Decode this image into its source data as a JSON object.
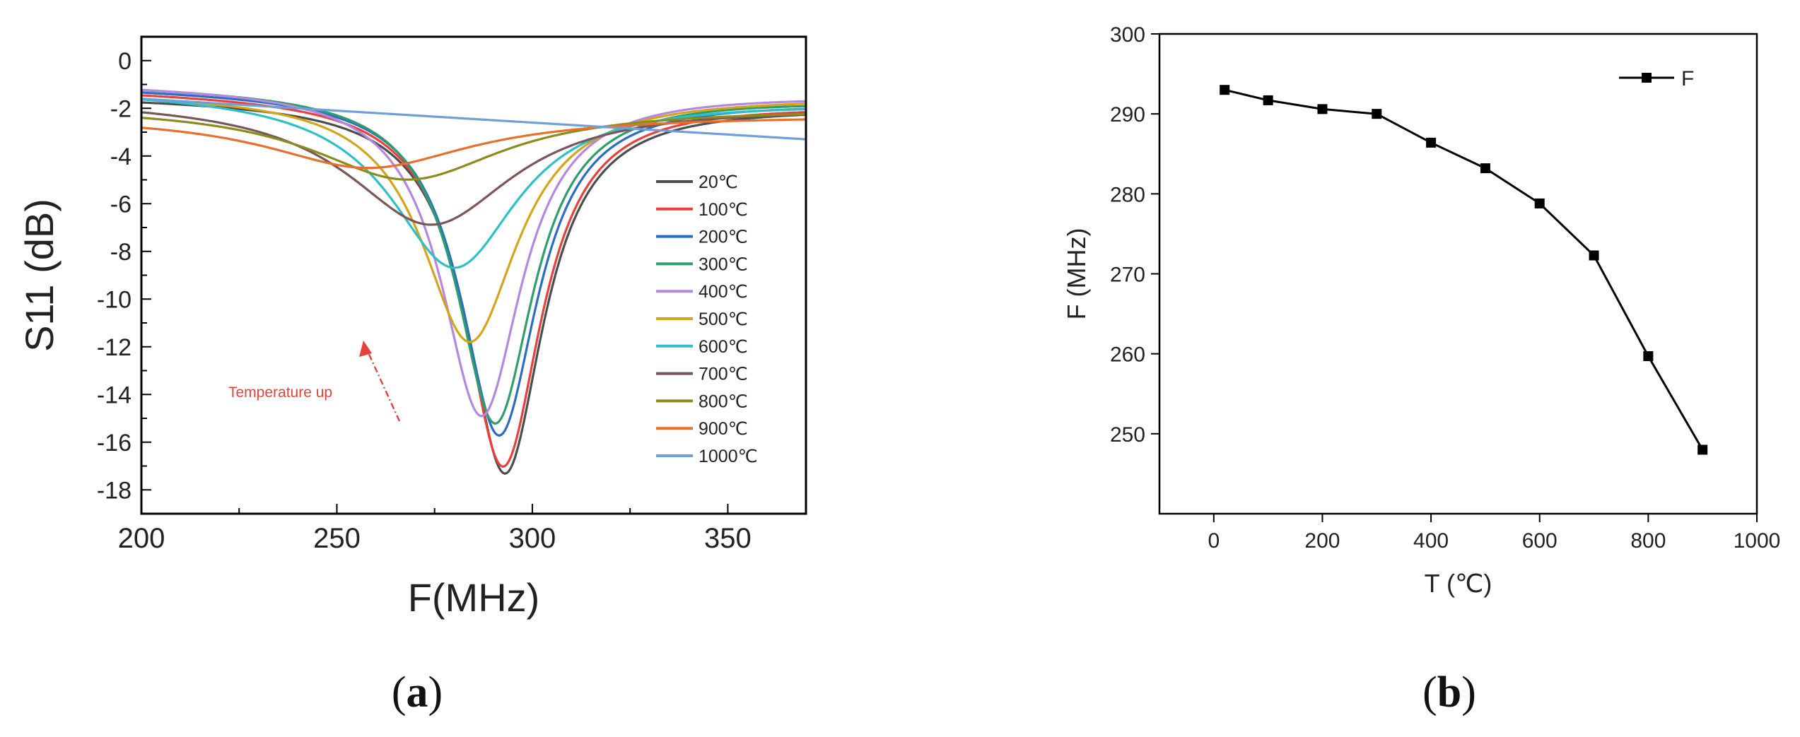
{
  "chart_data": [
    {
      "type": "line",
      "panel_label": {
        "open": "(",
        "letter": "a",
        "close": ")"
      },
      "title": "",
      "xlabel": "F(MHz)",
      "ylabel": "S11 (dB)",
      "xlim": [
        200,
        370
      ],
      "ylim": [
        -19,
        1
      ],
      "xticks": [
        200,
        250,
        300,
        350
      ],
      "yticks": [
        0,
        -2,
        -4,
        -6,
        -8,
        -10,
        -12,
        -14,
        -16,
        -18
      ],
      "legend_position": "right",
      "annotation": {
        "text": "Temperature up",
        "color": "#e8413c"
      },
      "series": [
        {
          "name": "20℃",
          "color": "#4d4d4d",
          "base": -1.5,
          "base_end": -1.9,
          "center": 293,
          "depth": -17.3,
          "width": 12
        },
        {
          "name": "100℃",
          "color": "#e8413c",
          "base": -1.2,
          "base_end": -1.8,
          "center": 292.5,
          "depth": -17.0,
          "width": 12
        },
        {
          "name": "200℃",
          "color": "#2b6cc4",
          "base": -1.1,
          "base_end": -1.7,
          "center": 291.5,
          "depth": -15.7,
          "width": 12
        },
        {
          "name": "300℃",
          "color": "#2f9e6b",
          "base": -1.0,
          "base_end": -1.6,
          "center": 290.5,
          "depth": -15.2,
          "width": 12
        },
        {
          "name": "400℃",
          "color": "#b487e0",
          "base": -0.95,
          "base_end": -1.4,
          "center": 287,
          "depth": -14.9,
          "width": 12.5
        },
        {
          "name": "500℃",
          "color": "#d4a51c",
          "base": -1.3,
          "base_end": -1.5,
          "center": 284,
          "depth": -11.8,
          "width": 15
        },
        {
          "name": "600℃",
          "color": "#2fc0c7",
          "base": -1.2,
          "base_end": -1.7,
          "center": 280,
          "depth": -8.7,
          "width": 20
        },
        {
          "name": "700℃",
          "color": "#7a5656",
          "base": -1.6,
          "base_end": -1.9,
          "center": 274,
          "depth": -6.9,
          "width": 26
        },
        {
          "name": "800℃",
          "color": "#8b8b1e",
          "base": -1.9,
          "base_end": -2.0,
          "center": 268,
          "depth": -5.0,
          "width": 30
        },
        {
          "name": "900℃",
          "color": "#e8702a",
          "base": -2.3,
          "base_end": -2.3,
          "center": 258,
          "depth": -4.5,
          "width": 32
        },
        {
          "name": "1000℃",
          "color": "#6f9fd8",
          "base": -1.6,
          "base_end": -3.3,
          "center": 250,
          "depth": -1.7,
          "width": 1
        }
      ]
    },
    {
      "type": "line",
      "panel_label": {
        "open": "(",
        "letter": "b",
        "close": ")"
      },
      "title": "",
      "xlabel": "T (℃)",
      "ylabel": "F (MHz)",
      "xlim": [
        -100,
        1000
      ],
      "ylim": [
        240,
        300
      ],
      "xticks": [
        0,
        200,
        400,
        600,
        800,
        1000
      ],
      "yticks": [
        250,
        260,
        270,
        280,
        290,
        300
      ],
      "legend_position": "top-right",
      "series": [
        {
          "name": "F",
          "color": "#000000",
          "marker": "square",
          "x": [
            20,
            100,
            200,
            300,
            400,
            500,
            600,
            700,
            800,
            900
          ],
          "y": [
            293,
            291.7,
            290.6,
            290,
            286.4,
            283.2,
            278.8,
            272.3,
            259.7,
            248
          ]
        }
      ]
    }
  ]
}
